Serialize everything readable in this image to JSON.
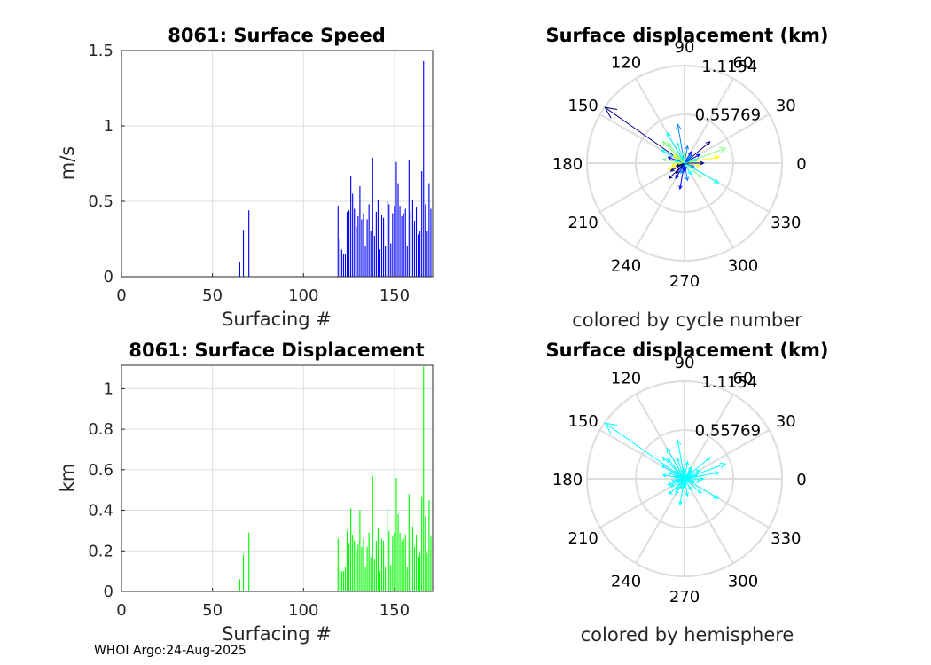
{
  "footer": {
    "credit": "WHOI Argo:24-Aug-2025"
  },
  "colors": {
    "speed_bar": "#0000ff",
    "disp_bar": "#00ff00",
    "polar_hemisphere": "#00ffff",
    "grid": "#dedede",
    "axis": "#262626"
  },
  "chart_data": [
    {
      "id": "speed",
      "type": "bar",
      "title": "8061: Surface Speed",
      "xlabel": "Surfacing #",
      "ylabel": "m/s",
      "xlim": [
        0,
        171
      ],
      "ylim": [
        0,
        1.5
      ],
      "xticks": [
        "0",
        "50",
        "100",
        "150"
      ],
      "yticks": [
        "0",
        "0.5",
        "1",
        "1.5"
      ],
      "grid": true,
      "x": [
        65,
        67,
        70,
        119,
        120,
        121,
        122,
        123,
        124,
        125,
        126,
        127,
        128,
        129,
        130,
        131,
        132,
        133,
        134,
        135,
        136,
        137,
        138,
        139,
        140,
        141,
        142,
        143,
        144,
        145,
        146,
        147,
        148,
        149,
        150,
        151,
        152,
        153,
        154,
        155,
        156,
        157,
        158,
        159,
        160,
        161,
        162,
        163,
        164,
        165,
        166,
        167,
        168,
        169,
        170
      ],
      "values": [
        0.1,
        0.31,
        0.44,
        0.47,
        0.25,
        0.18,
        0.15,
        0.15,
        0.43,
        0.44,
        0.67,
        0.55,
        0.45,
        0.33,
        0.4,
        0.6,
        0.38,
        0.42,
        0.2,
        0.38,
        0.48,
        0.3,
        0.79,
        0.27,
        0.43,
        0.51,
        0.18,
        0.41,
        0.39,
        0.2,
        0.5,
        0.48,
        0.22,
        0.42,
        0.47,
        0.76,
        0.62,
        0.47,
        0.4,
        0.42,
        0.45,
        0.2,
        0.77,
        0.43,
        0.51,
        0.37,
        0.46,
        0.28,
        0.3,
        0.7,
        1.43,
        0.48,
        0.3,
        0.62,
        0.45
      ]
    },
    {
      "id": "displacement",
      "type": "bar",
      "title": "8061: Surface Displacement",
      "xlabel": "Surfacing #",
      "ylabel": "km",
      "xlim": [
        0,
        171
      ],
      "ylim": [
        0,
        1.1154
      ],
      "xticks": [
        "0",
        "50",
        "100",
        "150"
      ],
      "yticks": [
        "0",
        "0.2",
        "0.4",
        "0.6",
        "0.8",
        "1"
      ],
      "grid": true,
      "x": [
        65,
        67,
        70,
        119,
        120,
        121,
        122,
        123,
        124,
        125,
        126,
        127,
        128,
        129,
        130,
        131,
        132,
        133,
        134,
        135,
        136,
        137,
        138,
        139,
        140,
        141,
        142,
        143,
        144,
        145,
        146,
        147,
        148,
        149,
        150,
        151,
        152,
        153,
        154,
        155,
        156,
        157,
        158,
        159,
        160,
        161,
        162,
        163,
        164,
        165,
        166,
        167,
        168,
        169,
        170
      ],
      "values": [
        0.06,
        0.18,
        0.29,
        0.26,
        0.13,
        0.1,
        0.1,
        0.12,
        0.3,
        0.24,
        0.41,
        0.28,
        0.25,
        0.2,
        0.23,
        0.4,
        0.22,
        0.26,
        0.12,
        0.22,
        0.29,
        0.17,
        0.57,
        0.16,
        0.25,
        0.31,
        0.1,
        0.26,
        0.25,
        0.12,
        0.41,
        0.3,
        0.13,
        0.27,
        0.29,
        0.56,
        0.38,
        0.29,
        0.25,
        0.26,
        0.28,
        0.12,
        0.48,
        0.26,
        0.32,
        0.22,
        0.28,
        0.17,
        0.19,
        0.47,
        1.11,
        0.37,
        0.19,
        0.45,
        0.27
      ]
    },
    {
      "id": "polar_cycle",
      "type": "polar-compass",
      "title": "Surface displacement (km)",
      "xlabel": "colored by cycle number",
      "rmax": 1.1154,
      "rings": [
        0.55769,
        1.1154
      ],
      "ring_labels": [
        "0.55769",
        "1.1154"
      ],
      "angle_labels": [
        "0",
        "30",
        "60",
        "90",
        "120",
        "150",
        "180",
        "210",
        "240",
        "270",
        "300",
        "330"
      ],
      "vectors_deg_km": [
        [
          145,
          1.11
        ],
        [
          160,
          0.2
        ],
        [
          100,
          0.45
        ],
        [
          120,
          0.4
        ],
        [
          130,
          0.3
        ],
        [
          200,
          0.2
        ],
        [
          225,
          0.25
        ],
        [
          260,
          0.3
        ],
        [
          280,
          0.2
        ],
        [
          330,
          0.45
        ],
        [
          20,
          0.5
        ],
        [
          10,
          0.4
        ],
        [
          40,
          0.38
        ],
        [
          60,
          0.15
        ],
        [
          80,
          0.2
        ],
        [
          150,
          0.3
        ],
        [
          170,
          0.25
        ],
        [
          190,
          0.15
        ],
        [
          210,
          0.18
        ],
        [
          240,
          0.2
        ],
        [
          250,
          0.12
        ],
        [
          300,
          0.15
        ],
        [
          320,
          0.25
        ],
        [
          350,
          0.18
        ],
        [
          0,
          0.22
        ],
        [
          30,
          0.2
        ],
        [
          50,
          0.12
        ],
        [
          110,
          0.25
        ],
        [
          135,
          0.35
        ],
        [
          185,
          0.1
        ],
        [
          230,
          0.15
        ],
        [
          270,
          0.1
        ],
        [
          340,
          0.12
        ],
        [
          15,
          0.15
        ],
        [
          95,
          0.12
        ],
        [
          145,
          0.15
        ],
        [
          200,
          0.1
        ],
        [
          275,
          0.08
        ],
        [
          45,
          0.1
        ],
        [
          165,
          0.12
        ]
      ],
      "colormap": [
        "#00007f",
        "#0000ff",
        "#007fff",
        "#00ffff",
        "#7fff7f",
        "#ffff00"
      ]
    },
    {
      "id": "polar_hemisphere",
      "type": "polar-compass",
      "title": "Surface displacement (km)",
      "xlabel": "colored by hemisphere",
      "rmax": 1.1154,
      "rings": [
        0.55769,
        1.1154
      ],
      "ring_labels": [
        "0.55769",
        "1.1154"
      ],
      "angle_labels": [
        "0",
        "30",
        "60",
        "90",
        "120",
        "150",
        "180",
        "210",
        "240",
        "270",
        "300",
        "330"
      ],
      "vectors_deg_km": [
        [
          145,
          1.11
        ],
        [
          160,
          0.2
        ],
        [
          100,
          0.45
        ],
        [
          120,
          0.4
        ],
        [
          130,
          0.3
        ],
        [
          200,
          0.2
        ],
        [
          225,
          0.25
        ],
        [
          260,
          0.3
        ],
        [
          280,
          0.2
        ],
        [
          330,
          0.45
        ],
        [
          20,
          0.5
        ],
        [
          10,
          0.4
        ],
        [
          40,
          0.38
        ],
        [
          60,
          0.15
        ],
        [
          80,
          0.2
        ],
        [
          150,
          0.3
        ],
        [
          170,
          0.25
        ],
        [
          190,
          0.15
        ],
        [
          210,
          0.18
        ],
        [
          240,
          0.2
        ],
        [
          250,
          0.12
        ],
        [
          300,
          0.15
        ],
        [
          320,
          0.25
        ],
        [
          350,
          0.18
        ],
        [
          0,
          0.22
        ],
        [
          30,
          0.2
        ],
        [
          50,
          0.12
        ],
        [
          110,
          0.25
        ],
        [
          135,
          0.35
        ],
        [
          185,
          0.1
        ],
        [
          230,
          0.15
        ],
        [
          270,
          0.1
        ],
        [
          340,
          0.12
        ],
        [
          15,
          0.15
        ],
        [
          95,
          0.12
        ],
        [
          145,
          0.15
        ],
        [
          200,
          0.1
        ],
        [
          275,
          0.08
        ],
        [
          45,
          0.1
        ],
        [
          165,
          0.12
        ]
      ],
      "colormap": [
        "#00ffff"
      ]
    }
  ]
}
